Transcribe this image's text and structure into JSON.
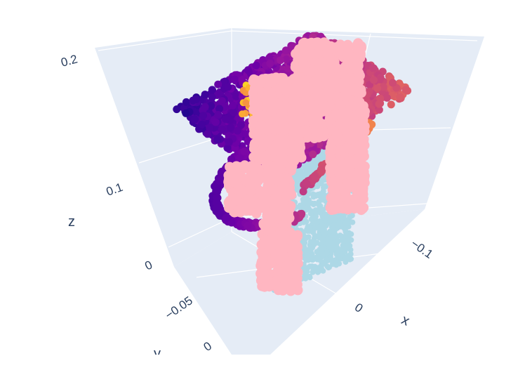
{
  "chart_data": {
    "type": "scatter3d",
    "axes": {
      "x": {
        "title": "x",
        "ticks": [
          "−0.1",
          "0"
        ]
      },
      "y": {
        "title": "y",
        "ticks": [
          "−0.05",
          "0"
        ]
      },
      "z": {
        "title": "z",
        "ticks": [
          "0",
          "0.1",
          "0.2"
        ]
      }
    },
    "grid": true,
    "legend": "none",
    "colors": {
      "background_plane": "#e5ecf6",
      "grid": "#ffffff",
      "pink_points": "#ffb6c1",
      "light_blue_points": "#add8e6",
      "colorscale_plasma": [
        "#0d0887",
        "#46039f",
        "#7201a8",
        "#9c179e",
        "#bd3786",
        "#d8576b",
        "#ed7953",
        "#fb9f3a",
        "#fdca26",
        "#f0f921"
      ]
    },
    "series": [
      {
        "marker": "light-blue",
        "color": "#add8e6",
        "shape": "box"
      },
      {
        "marker": "plasma-colorscale",
        "shape": "plane-and-ring"
      },
      {
        "marker": "pink",
        "color": "#ffb6c1",
        "shape": "gripper"
      }
    ]
  }
}
